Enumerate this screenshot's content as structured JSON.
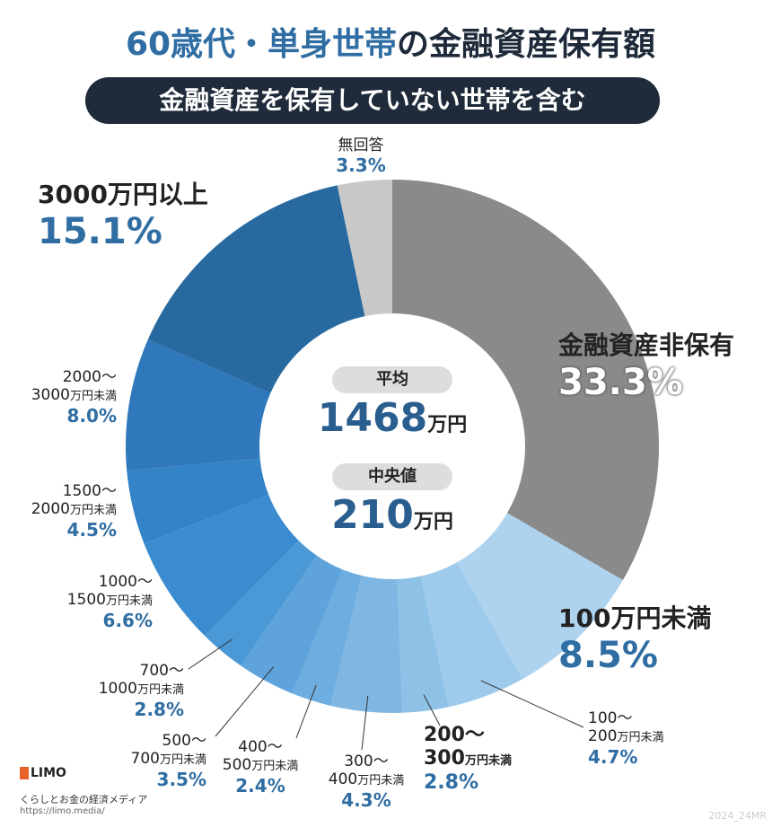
{
  "title_accent": "60歳代・単身世帯",
  "title_rest": "の金融資産保有額",
  "subtitle": "金融資産を保有していない世帯を含む",
  "center": {
    "avg_label": "平均",
    "avg_value": "1468",
    "median_label": "中央値",
    "median_value": "210",
    "unit": "万円"
  },
  "chart_data": {
    "type": "pie",
    "donut": true,
    "start": "top, clockwise",
    "categories": [
      "金融資産非保有",
      "100万円未満",
      "100〜200万円未満",
      "200〜300万円未満",
      "300〜400万円未満",
      "400〜500万円未満",
      "500〜700万円未満",
      "700〜1000万円未満",
      "1000〜1500万円未満",
      "1500〜2000万円未満",
      "2000〜3000万円未満",
      "3000万円以上",
      "無回答"
    ],
    "values": [
      33.3,
      8.5,
      4.7,
      2.8,
      4.3,
      2.4,
      3.5,
      2.8,
      6.6,
      4.5,
      8.0,
      15.1,
      3.3
    ],
    "labels": [
      "33.3%",
      "8.5%",
      "4.7%",
      "2.8%",
      "4.3%",
      "2.4%",
      "3.5%",
      "2.8%",
      "6.6%",
      "4.5%",
      "8.0%",
      "15.1%",
      "3.3%"
    ],
    "colors": [
      "#8a8a8a",
      "#aed3ef",
      "#9ecbeb",
      "#8ec1e6",
      "#7fb7e2",
      "#6eaddf",
      "#5ea3db",
      "#4b98d6",
      "#3a8bcf",
      "#3583c7",
      "#2f78bb",
      "#286a9f",
      "#c8c8c8"
    ]
  },
  "label_text": [
    {
      "l1": "金融資産非保有",
      "l2": ""
    },
    {
      "l1": "100万円未満",
      "l2": ""
    },
    {
      "l1": "100〜",
      "l2": "200",
      "u": "万円未満"
    },
    {
      "l1": "200〜",
      "l2": "300",
      "u": "万円未満"
    },
    {
      "l1": "300〜",
      "l2": "400",
      "u": "万円未満"
    },
    {
      "l1": "400〜",
      "l2": "500",
      "u": "万円未満"
    },
    {
      "l1": "500〜",
      "l2": "700",
      "u": "万円未満"
    },
    {
      "l1": "700〜",
      "l2": "1000",
      "u": "万円未満"
    },
    {
      "l1": "1000〜",
      "l2": "1500",
      "u": "万円未満"
    },
    {
      "l1": "1500〜",
      "l2": "2000",
      "u": "万円未満"
    },
    {
      "l1": "2000〜",
      "l2": "3000",
      "u": "万円未満"
    },
    {
      "l1": "3000万円以上",
      "l2": ""
    },
    {
      "l1": "無回答",
      "l2": ""
    }
  ],
  "footer": {
    "logo": "LIMO",
    "tagline": "くらしとお金の経済メディア",
    "url": "https://limo.media/",
    "code": "2024_24MR"
  }
}
